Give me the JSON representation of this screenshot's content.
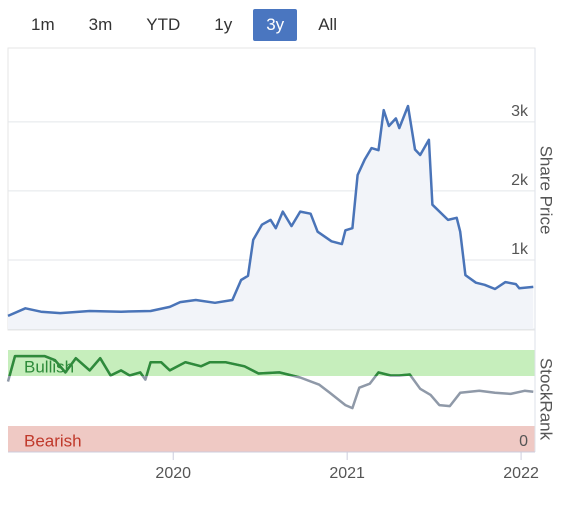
{
  "buttons": [
    "1m",
    "3m",
    "YTD",
    "1y",
    "3y",
    "All"
  ],
  "selected_index": 4,
  "chart_data": [
    {
      "type": "area",
      "y_label": "Share Price",
      "color": "#4a74b8",
      "fill": "#f2f4f9",
      "grid": true,
      "xlim": [
        2019.05,
        2022.08
      ],
      "ylim": [
        0,
        4070
      ],
      "yticks": [
        0,
        {
          "value": 1000,
          "label": "1k"
        },
        {
          "value": 2000,
          "label": "2k"
        },
        {
          "value": 3000,
          "label": "3k"
        }
      ],
      "x": [
        2019.05,
        2019.15,
        2019.24,
        2019.35,
        2019.52,
        2019.7,
        2019.87,
        2019.98,
        2020.04,
        2020.13,
        2020.24,
        2020.34,
        2020.39,
        2020.43,
        2020.46,
        2020.51,
        2020.56,
        2020.59,
        2020.63,
        2020.68,
        2020.73,
        2020.79,
        2020.83,
        2020.91,
        2020.97,
        2020.99,
        2021.03,
        2021.06,
        2021.1,
        2021.14,
        2021.18,
        2021.21,
        2021.24,
        2021.28,
        2021.3,
        2021.35,
        2021.39,
        2021.42,
        2021.47,
        2021.49,
        2021.58,
        2021.63,
        2021.65,
        2021.68,
        2021.74,
        2021.79,
        2021.85,
        2021.91,
        2021.97,
        2021.99,
        2022.07
      ],
      "values": [
        190,
        300,
        250,
        230,
        260,
        250,
        260,
        320,
        390,
        420,
        380,
        420,
        710,
        770,
        1290,
        1510,
        1580,
        1460,
        1700,
        1490,
        1700,
        1670,
        1410,
        1270,
        1230,
        1430,
        1460,
        2230,
        2450,
        2620,
        2590,
        3170,
        2940,
        3050,
        2910,
        3230,
        2600,
        2520,
        2740,
        1800,
        1580,
        1610,
        1410,
        780,
        670,
        640,
        580,
        680,
        650,
        590,
        610
      ]
    },
    {
      "type": "line",
      "y_label": "StockRank",
      "color": "#8f99a8",
      "bullish_color": "#2e8b3a",
      "bullish_label": "Bullish",
      "bearish_label": "Bearish",
      "xlim": [
        2019.05,
        2022.08
      ],
      "ylim": [
        0,
        100
      ],
      "yticks": [
        0
      ],
      "xticks": [
        2020,
        2021,
        2022
      ],
      "x": [
        2019.05,
        2019.09,
        2019.26,
        2019.32,
        2019.38,
        2019.44,
        2019.52,
        2019.58,
        2019.64,
        2019.7,
        2019.75,
        2019.81,
        2019.84,
        2019.87,
        2019.93,
        2019.98,
        2020.07,
        2020.16,
        2020.21,
        2020.3,
        2020.41,
        2020.49,
        2020.61,
        2020.73,
        2020.84,
        2020.9,
        2020.99,
        2021.03,
        2021.07,
        2021.13,
        2021.18,
        2021.25,
        2021.3,
        2021.36,
        2021.42,
        2021.48,
        2021.53,
        2021.59,
        2021.65,
        2021.76,
        2021.85,
        2021.94,
        2022.02,
        2022.07
      ],
      "values": [
        69,
        94,
        94,
        90,
        78,
        92,
        80,
        92,
        75,
        80,
        75,
        78,
        71,
        88,
        88,
        80,
        88,
        84,
        88,
        88,
        84,
        77,
        78,
        73,
        66,
        58,
        46,
        43,
        63,
        67,
        78,
        75,
        75,
        76,
        62,
        56,
        46,
        45,
        58,
        60,
        58,
        57,
        60,
        59
      ]
    }
  ]
}
